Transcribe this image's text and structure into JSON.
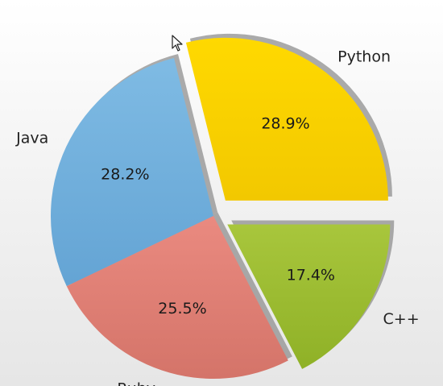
{
  "chart_data": {
    "type": "pie",
    "title": "",
    "labels": [
      "Python",
      "Java",
      "Ruby",
      "C++"
    ],
    "values": [
      28.9,
      28.2,
      25.5,
      17.4
    ],
    "percent_labels": [
      "28.9%",
      "28.2%",
      "25.5%",
      "17.4%"
    ],
    "colors": [
      "#f5cf00",
      "#6fb1de",
      "#e07f75",
      "#9bbd2d"
    ],
    "explode": [
      0.12,
      0,
      0,
      0.1
    ],
    "start_angle_deg": 0,
    "direction": "counterclockwise",
    "shadow": true,
    "legend": false
  }
}
